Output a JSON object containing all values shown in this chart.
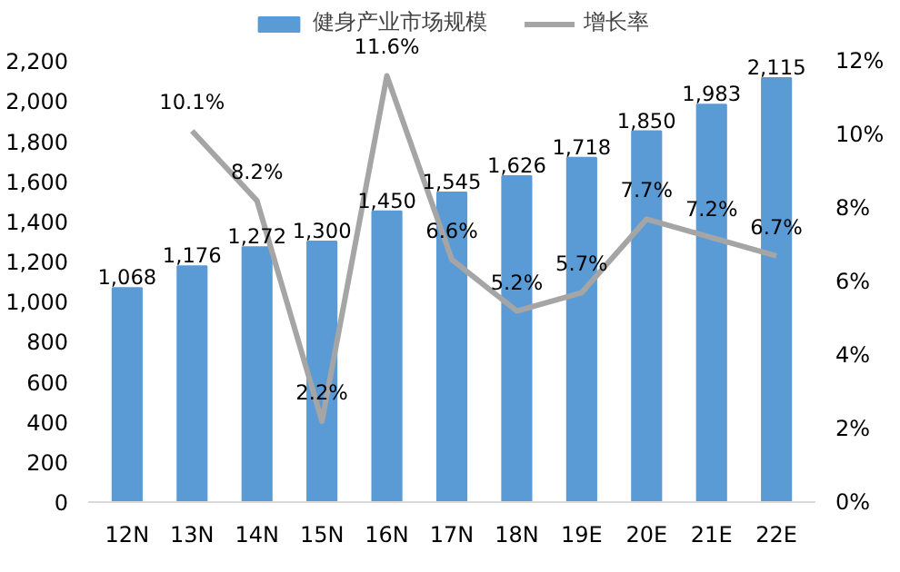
{
  "chart_data": {
    "type": "bar",
    "categories": [
      "12N",
      "13N",
      "14N",
      "15N",
      "16N",
      "17N",
      "18N",
      "19E",
      "20E",
      "21E",
      "22E"
    ],
    "series": [
      {
        "name": "健身产业市场规模",
        "color": "#5b9bd5",
        "values": [
          1068,
          1176,
          1272,
          1300,
          1450,
          1545,
          1626,
          1718,
          1850,
          1983,
          2115
        ],
        "value_labels": [
          "1,068",
          "1,176",
          "1,272",
          "1,300",
          "1,450",
          "1,545",
          "1,626",
          "1,718",
          "1,850",
          "1,983",
          "2,115"
        ]
      },
      {
        "name": "增长率",
        "type": "line",
        "axis": "y2",
        "color": "#a5a5a5",
        "values": [
          null,
          10.1,
          8.2,
          2.2,
          11.6,
          6.6,
          5.2,
          5.7,
          7.7,
          7.2,
          6.7
        ],
        "value_labels": [
          null,
          "10.1%",
          "8.2%",
          "2.2%",
          "11.6%",
          "6.6%",
          "5.2%",
          "5.7%",
          "7.7%",
          "7.2%",
          "6.7%"
        ]
      }
    ],
    "ylim": [
      0,
      2200
    ],
    "yticks": [
      0,
      {
        "value": 200,
        "label": "200"
      },
      {
        "value": 400,
        "label": "400"
      },
      {
        "value": 600,
        "label": "600"
      },
      {
        "value": 800,
        "label": "800"
      },
      {
        "value": 1000,
        "label": "1,000"
      },
      {
        "value": 1200,
        "label": "1,200"
      },
      {
        "value": 1400,
        "label": "1,400"
      },
      {
        "value": 1600,
        "label": "1,600"
      },
      {
        "value": 1800,
        "label": "1,800"
      },
      {
        "value": 2000,
        "label": "2,000"
      },
      {
        "value": 2200,
        "label": "2,200"
      }
    ],
    "y2lim": [
      0,
      12
    ],
    "y2ticks": [
      {
        "value": 0,
        "label": "0%"
      },
      {
        "value": 2,
        "label": "2%"
      },
      {
        "value": 4,
        "label": "4%"
      },
      {
        "value": 6,
        "label": "6%"
      },
      {
        "value": 8,
        "label": "8%"
      },
      {
        "value": 10,
        "label": "10%"
      },
      {
        "value": 12,
        "label": "12%"
      }
    ],
    "legend": "top",
    "grid": false,
    "marker": "none",
    "line_style": "solid"
  }
}
